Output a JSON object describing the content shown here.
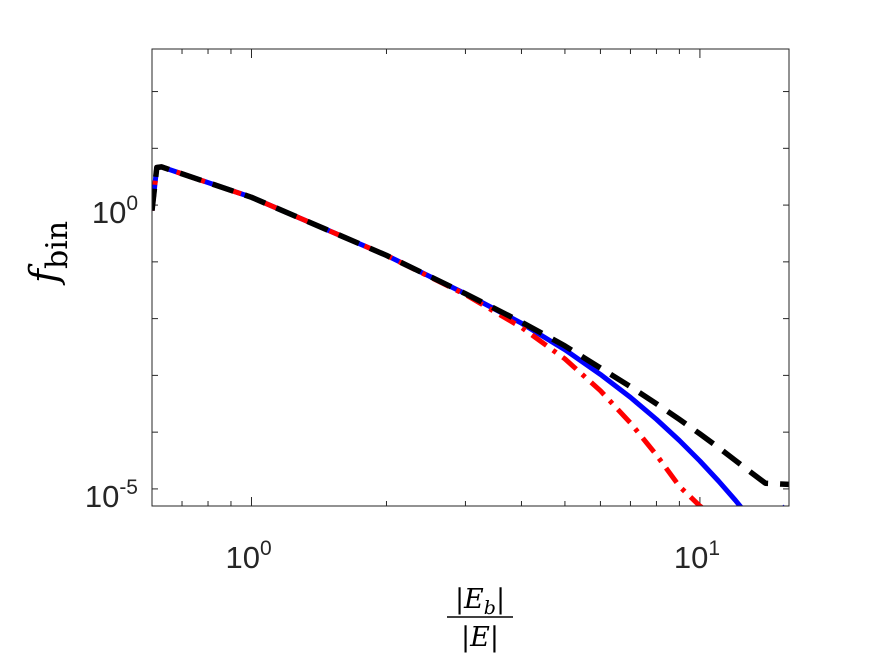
{
  "chart_data": {
    "type": "line",
    "xscale": "log",
    "yscale": "log",
    "xlim": [
      0.6,
      15.8
    ],
    "ylim": [
      5e-06,
      562
    ],
    "grid": false,
    "legend": "none",
    "x_ticks": [
      {
        "value": 1,
        "base": "10",
        "exp": "0"
      },
      {
        "value": 10,
        "base": "10",
        "exp": "1"
      }
    ],
    "y_ticks": [
      {
        "value": 1,
        "base": "10",
        "exp": "0"
      },
      {
        "value": 1e-05,
        "base": "10",
        "exp": "-5"
      }
    ],
    "ylabel": {
      "main": "f",
      "sub": "bin"
    },
    "xlabel": {
      "numerator": "|E",
      "numerator_sub": "b",
      "numerator_end": "|",
      "denominator": "|E|"
    },
    "series": [
      {
        "style": "solid",
        "color": "#0000ff",
        "x": [
          0.6,
          0.615,
          0.63,
          1,
          2,
          3,
          4,
          5,
          6,
          7,
          8,
          9,
          10,
          11,
          12,
          13,
          14,
          15.5
        ],
        "y": [
          0.8,
          4.6,
          4.7,
          1.37,
          0.13,
          0.0275,
          0.0083,
          0.00284,
          0.00104,
          0.00041,
          0.000168,
          7.14e-05,
          3.1e-05,
          1.38e-05,
          6.3e-06,
          2.9e-06,
          1.4e-06,
          5e-06
        ]
      },
      {
        "style": "dash-dot",
        "color": "#ff0000",
        "x": [
          0.6,
          0.615,
          0.63,
          1,
          2,
          3,
          4,
          5,
          6,
          7,
          8,
          9,
          10,
          11
        ],
        "y": [
          0.8,
          4.6,
          4.7,
          1.37,
          0.13,
          0.0265,
          0.007,
          0.00195,
          0.000537,
          0.000145,
          3.96e-05,
          1.11e-05,
          5e-06,
          2.8e-06
        ]
      },
      {
        "style": "dashed",
        "color": "#000000",
        "x": [
          0.6,
          0.615,
          0.63,
          1,
          2,
          3,
          4,
          5,
          6,
          7,
          8,
          9,
          10,
          11,
          12,
          13,
          14,
          15.8
        ],
        "y": [
          0.8,
          4.6,
          4.7,
          1.37,
          0.13,
          0.0275,
          0.0087,
          0.0033,
          0.00135,
          0.000631,
          0.000316,
          0.000168,
          9.33e-05,
          5.37e-05,
          3.16e-05,
          1.95e-05,
          1.26e-05,
          1.2e-05
        ]
      }
    ]
  }
}
